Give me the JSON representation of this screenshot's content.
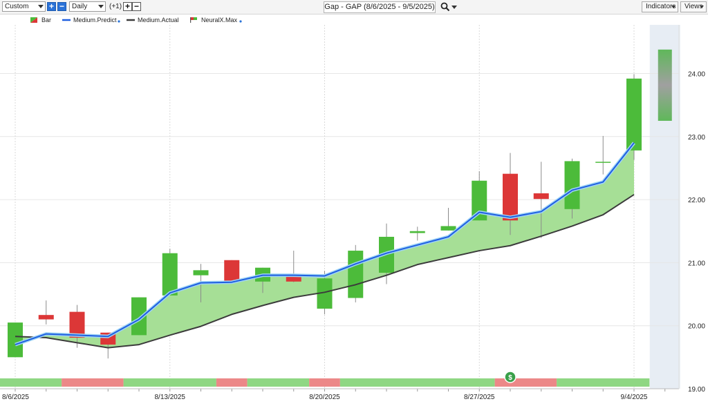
{
  "toolbar": {
    "range_select": "Custom",
    "interval_select": "Daily",
    "offset_label": "(+1)",
    "title": "Gap - GAP (8/6/2025 - 9/5/2025)",
    "indicators_label": "Indicators",
    "views_label": "Views"
  },
  "legend": [
    {
      "label": "Bar",
      "icon": "green-red-bar-icon"
    },
    {
      "label": "Medium.Predict",
      "color": "#1f5fe0"
    },
    {
      "label": "Medium.Actual",
      "color": "#3b3b3b"
    },
    {
      "label": "NeuralX.Max",
      "icon": "green-red-flag-icon"
    }
  ],
  "colors": {
    "up": "#4cbb3a",
    "down": "#dc3737",
    "predict": "#1f5fe0",
    "actual": "#3b3b3b",
    "band_fill": "#a6df96",
    "strip_green": "#8fd783",
    "strip_red": "#ec8888",
    "forecast_bg": "#e7edf4"
  },
  "chart_data": {
    "type": "candlestick",
    "ylim": [
      19.0,
      24.8
    ],
    "y_ticks": [
      "19.00",
      "20.00",
      "21.00",
      "22.00",
      "23.00",
      "24.00"
    ],
    "x_ticks": [
      "8/6/2025",
      "8/13/2025",
      "8/20/2025",
      "8/27/2025",
      "9/4/2025"
    ],
    "candles": [
      {
        "date": "8/6/2025",
        "open": 19.5,
        "high": 20.05,
        "low": 19.5,
        "close": 20.05
      },
      {
        "date": "8/7/2025",
        "open": 20.17,
        "high": 20.4,
        "low": 20.02,
        "close": 20.1
      },
      {
        "date": "8/8/2025",
        "open": 20.22,
        "high": 20.33,
        "low": 19.65,
        "close": 19.81
      },
      {
        "date": "8/11/2025",
        "open": 19.89,
        "high": 19.89,
        "low": 19.48,
        "close": 19.7
      },
      {
        "date": "8/12/2025",
        "open": 19.85,
        "high": 20.45,
        "low": 19.85,
        "close": 20.45
      },
      {
        "date": "8/13/2025",
        "open": 20.48,
        "high": 21.22,
        "low": 20.48,
        "close": 21.15
      },
      {
        "date": "8/14/2025",
        "open": 20.8,
        "high": 20.98,
        "low": 20.37,
        "close": 20.88
      },
      {
        "date": "8/15/2025",
        "open": 21.04,
        "high": 21.04,
        "low": 20.69,
        "close": 20.69
      },
      {
        "date": "8/18/2025",
        "open": 20.7,
        "high": 20.92,
        "low": 20.52,
        "close": 20.92
      },
      {
        "date": "8/19/2025",
        "open": 20.8,
        "high": 21.19,
        "low": 20.69,
        "close": 20.7
      },
      {
        "date": "8/20/2025",
        "open": 20.27,
        "high": 20.87,
        "low": 20.18,
        "close": 20.75
      },
      {
        "date": "8/21/2025",
        "open": 20.44,
        "high": 21.28,
        "low": 20.37,
        "close": 21.19
      },
      {
        "date": "8/22/2025",
        "open": 20.84,
        "high": 21.62,
        "low": 20.66,
        "close": 21.41
      },
      {
        "date": "8/25/2025",
        "open": 21.47,
        "high": 21.57,
        "low": 21.35,
        "close": 21.5
      },
      {
        "date": "8/26/2025",
        "open": 21.51,
        "high": 21.87,
        "low": 21.51,
        "close": 21.58
      },
      {
        "date": "8/27/2025",
        "open": 21.67,
        "high": 22.45,
        "low": 21.67,
        "close": 22.3
      },
      {
        "date": "8/28/2025",
        "open": 22.41,
        "high": 22.74,
        "low": 21.44,
        "close": 21.67
      },
      {
        "date": "8/29/2025",
        "open": 22.1,
        "high": 22.6,
        "low": 21.39,
        "close": 22.01
      },
      {
        "date": "9/2/2025",
        "open": 21.85,
        "high": 22.65,
        "low": 21.7,
        "close": 22.61
      },
      {
        "date": "9/3/2025",
        "open": 22.6,
        "high": 23.01,
        "low": 22.4,
        "close": 22.6
      },
      {
        "date": "9/4/2025",
        "open": 22.78,
        "high": 23.99,
        "low": 22.63,
        "close": 23.92
      }
    ],
    "forecast": {
      "date": "9/5/2025",
      "high": 24.38,
      "low": 23.25
    },
    "series": [
      {
        "name": "Medium.Predict",
        "values": [
          19.7,
          19.87,
          19.85,
          19.83,
          20.1,
          20.52,
          20.68,
          20.69,
          20.8,
          20.8,
          20.79,
          20.98,
          21.15,
          21.28,
          21.41,
          21.8,
          21.72,
          21.81,
          22.15,
          22.28,
          22.9
        ]
      },
      {
        "name": "Medium.Actual",
        "values": [
          19.83,
          19.81,
          19.73,
          19.65,
          19.7,
          19.85,
          19.99,
          20.18,
          20.32,
          20.45,
          20.53,
          20.65,
          20.8,
          20.97,
          21.08,
          21.19,
          21.27,
          21.42,
          21.58,
          21.76,
          22.08
        ]
      }
    ],
    "signal_strip": [
      "green",
      "green",
      "red",
      "red",
      "green",
      "green",
      "green",
      "red",
      "green",
      "green",
      "red",
      "green",
      "green",
      "green",
      "green",
      "green",
      "red",
      "red",
      "green",
      "green",
      "green"
    ]
  }
}
